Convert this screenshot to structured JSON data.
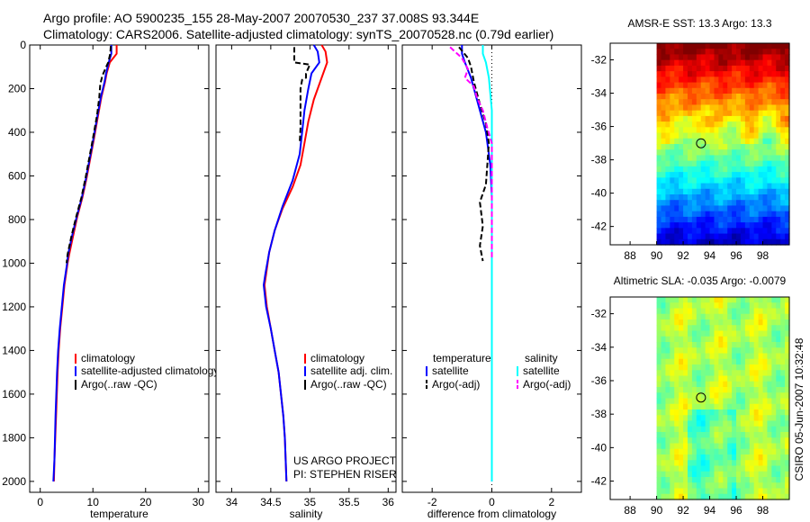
{
  "header": {
    "line1": "Argo profile: AO 5900235_155 28-May-2007 20070530_237 37.008S 93.344E",
    "line2": "Climatology: CARS2006. Satellite-adjusted climatology: synTS_20070528.nc (0.79d earlier)"
  },
  "credit": "CSIRO 05-Jun-2007 10:32:48",
  "project": {
    "line1": "US ARGO PROJECT",
    "line2": "PI: STEPHEN RISER"
  },
  "colors": {
    "climatology": "#ff0000",
    "satellite": "#0000ff",
    "argo": "#000000",
    "sat_sal": "#00ffff",
    "argo_sal": "#ff00ff"
  },
  "chart_data": [
    {
      "id": "temperature",
      "type": "line",
      "xlabel": "temperature",
      "xlim": [
        -2,
        32
      ],
      "ylim": [
        0,
        2050
      ],
      "xticks": [
        "0",
        "10",
        "20",
        "30"
      ],
      "yticks": [
        "0",
        "200",
        "400",
        "600",
        "800",
        "1000",
        "1200",
        "1400",
        "1600",
        "1800",
        "2000"
      ],
      "legend": [
        "climatology",
        "satellite-adjusted climatology",
        "Argo(..raw -QC)"
      ],
      "series": [
        {
          "name": "climatology",
          "color": "red",
          "points": [
            [
              14.5,
              0
            ],
            [
              14.5,
              40
            ],
            [
              13.2,
              80
            ],
            [
              12.6,
              130
            ],
            [
              12.3,
              170
            ],
            [
              11.6,
              240
            ],
            [
              11.0,
              320
            ],
            [
              10.2,
              430
            ],
            [
              9.5,
              520
            ],
            [
              8.8,
              610
            ],
            [
              8.0,
              700
            ],
            [
              7.0,
              790
            ],
            [
              6.2,
              880
            ],
            [
              5.5,
              960
            ],
            [
              5.2,
              1000
            ],
            [
              4.6,
              1100
            ],
            [
              4.2,
              1200
            ],
            [
              3.8,
              1300
            ],
            [
              3.5,
              1400
            ],
            [
              3.3,
              1500
            ],
            [
              3.0,
              1700
            ],
            [
              2.7,
              1900
            ],
            [
              2.6,
              2000
            ]
          ]
        },
        {
          "name": "satellite-adjusted climatology",
          "color": "blue",
          "points": [
            [
              13.5,
              0
            ],
            [
              13.5,
              40
            ],
            [
              13.0,
              80
            ],
            [
              12.5,
              130
            ],
            [
              12.2,
              170
            ],
            [
              11.5,
              240
            ],
            [
              10.9,
              320
            ],
            [
              10.1,
              430
            ],
            [
              9.4,
              520
            ],
            [
              8.7,
              610
            ],
            [
              7.9,
              700
            ],
            [
              6.9,
              790
            ],
            [
              6.0,
              880
            ],
            [
              5.3,
              960
            ],
            [
              5.1,
              1000
            ],
            [
              4.5,
              1100
            ],
            [
              4.1,
              1200
            ],
            [
              3.7,
              1300
            ],
            [
              3.4,
              1400
            ],
            [
              3.2,
              1500
            ],
            [
              2.9,
              1700
            ],
            [
              2.7,
              1900
            ],
            [
              2.5,
              2000
            ]
          ]
        },
        {
          "name": "Argo(..raw -QC)",
          "color": "black",
          "dash": true,
          "points": [
            [
              13.4,
              5
            ],
            [
              13.3,
              40
            ],
            [
              12.9,
              80
            ],
            [
              11.8,
              140
            ],
            [
              11.4,
              180
            ],
            [
              11.2,
              240
            ],
            [
              10.8,
              320
            ],
            [
              10.0,
              430
            ],
            [
              9.3,
              520
            ],
            [
              8.6,
              610
            ],
            [
              7.8,
              700
            ],
            [
              6.8,
              790
            ],
            [
              5.9,
              880
            ],
            [
              5.2,
              960
            ],
            [
              5.0,
              1000
            ]
          ]
        }
      ]
    },
    {
      "id": "salinity",
      "type": "line",
      "xlabel": "salinity",
      "xlim": [
        33.8,
        36.1
      ],
      "ylim": [
        0,
        2050
      ],
      "xticks": [
        "34",
        "34.5",
        "35",
        "35.5",
        "36"
      ],
      "legend": [
        "climatology",
        "satellite adj. clim.",
        "Argo(..raw -QC)"
      ],
      "series": [
        {
          "name": "climatology",
          "color": "red",
          "points": [
            [
              35.15,
              0
            ],
            [
              35.2,
              30
            ],
            [
              35.22,
              80
            ],
            [
              35.15,
              150
            ],
            [
              35.05,
              250
            ],
            [
              34.98,
              350
            ],
            [
              34.93,
              450
            ],
            [
              34.88,
              550
            ],
            [
              34.78,
              650
            ],
            [
              34.65,
              750
            ],
            [
              34.55,
              850
            ],
            [
              34.48,
              950
            ],
            [
              34.44,
              1050
            ],
            [
              34.42,
              1100
            ],
            [
              34.45,
              1200
            ],
            [
              34.5,
              1300
            ],
            [
              34.55,
              1400
            ],
            [
              34.6,
              1500
            ],
            [
              34.63,
              1600
            ],
            [
              34.66,
              1700
            ],
            [
              34.68,
              1800
            ],
            [
              34.69,
              1900
            ],
            [
              34.7,
              2000
            ]
          ]
        },
        {
          "name": "satellite adj. clim.",
          "color": "blue",
          "points": [
            [
              35.05,
              0
            ],
            [
              35.1,
              30
            ],
            [
              35.12,
              80
            ],
            [
              35.02,
              130
            ],
            [
              34.98,
              200
            ],
            [
              34.93,
              300
            ],
            [
              34.9,
              400
            ],
            [
              34.87,
              500
            ],
            [
              34.78,
              620
            ],
            [
              34.65,
              740
            ],
            [
              34.55,
              850
            ],
            [
              34.48,
              950
            ],
            [
              34.43,
              1050
            ],
            [
              34.41,
              1100
            ],
            [
              34.44,
              1200
            ],
            [
              34.5,
              1300
            ],
            [
              34.55,
              1400
            ],
            [
              34.6,
              1500
            ],
            [
              34.63,
              1600
            ],
            [
              34.66,
              1700
            ],
            [
              34.68,
              1800
            ],
            [
              34.69,
              1900
            ],
            [
              34.7,
              2000
            ]
          ]
        },
        {
          "name": "Argo(..raw -QC)",
          "color": "black",
          "dash": true,
          "points": [
            [
              34.8,
              10
            ],
            [
              34.8,
              80
            ],
            [
              35.0,
              90
            ],
            [
              34.95,
              130
            ],
            [
              34.95,
              150
            ],
            [
              34.9,
              160
            ],
            [
              34.88,
              200
            ],
            [
              34.88,
              260
            ],
            [
              34.88,
              380
            ],
            [
              34.87,
              450
            ]
          ]
        }
      ]
    },
    {
      "id": "difference",
      "type": "line",
      "xlabel": "difference from climatology",
      "xlim": [
        -3,
        3
      ],
      "ylim": [
        0,
        2050
      ],
      "xticks": [
        "-2",
        "0",
        "2"
      ],
      "legend_headers": [
        "temperature",
        "salinity"
      ],
      "legend": [
        "satellite",
        "Argo(-adj)",
        "satellite",
        "Argo(-adj)"
      ],
      "series": [
        {
          "name": "temperature satellite",
          "color": "blue",
          "points": [
            [
              -1.0,
              0
            ],
            [
              -1.0,
              40
            ],
            [
              -0.9,
              80
            ],
            [
              -0.7,
              150
            ],
            [
              -0.5,
              250
            ],
            [
              -0.2,
              400
            ],
            [
              -0.05,
              550
            ],
            [
              0,
              700
            ],
            [
              0,
              2000
            ]
          ]
        },
        {
          "name": "temperature Argo(-adj)",
          "color": "black",
          "dash": true,
          "points": [
            [
              -1.1,
              10
            ],
            [
              -0.8,
              60
            ],
            [
              -0.7,
              100
            ],
            [
              -0.6,
              170
            ],
            [
              -0.4,
              270
            ],
            [
              -0.2,
              360
            ],
            [
              -0.1,
              450
            ],
            [
              -0.2,
              640
            ],
            [
              -0.4,
              720
            ],
            [
              -0.3,
              830
            ],
            [
              -0.4,
              920
            ],
            [
              -0.3,
              990
            ]
          ]
        },
        {
          "name": "salinity satellite",
          "color": "cyan",
          "points": [
            [
              -0.3,
              0
            ],
            [
              -0.3,
              40
            ],
            [
              -0.2,
              80
            ],
            [
              -0.1,
              150
            ],
            [
              0,
              300
            ],
            [
              0,
              2000
            ]
          ]
        },
        {
          "name": "salinity Argo(-adj)",
          "color": "magenta",
          "dash": true,
          "points": [
            [
              -1.4,
              10
            ],
            [
              -1.0,
              60
            ],
            [
              -0.8,
              110
            ],
            [
              -0.9,
              150
            ],
            [
              -0.6,
              190
            ],
            [
              -0.5,
              240
            ],
            [
              -0.3,
              300
            ],
            [
              -0.15,
              380
            ],
            [
              0,
              450
            ],
            [
              0,
              980
            ]
          ]
        }
      ]
    },
    {
      "id": "sst-map",
      "type": "heatmap",
      "title": "AMSR-E SST: 13.3 Argo: 13.3",
      "xlim": [
        86.5,
        100
      ],
      "ylim": [
        -43.1,
        -31.0
      ],
      "xticks": [
        "88",
        "90",
        "92",
        "94",
        "96",
        "98"
      ],
      "yticks": [
        "-32",
        "-34",
        "-36",
        "-38",
        "-40",
        "-42"
      ],
      "data_lon_range": [
        90,
        100
      ],
      "marker": {
        "lon": 93.344,
        "lat": -37.008
      }
    },
    {
      "id": "sla-map",
      "type": "heatmap",
      "title": "Altimetric SLA: -0.035 Argo: -0.0079",
      "xlim": [
        86.5,
        100
      ],
      "ylim": [
        -43.1,
        -31.0
      ],
      "xticks": [
        "88",
        "90",
        "92",
        "94",
        "96",
        "98"
      ],
      "yticks": [
        "-32",
        "-34",
        "-36",
        "-38",
        "-40",
        "-42"
      ],
      "data_lon_range": [
        90,
        100
      ],
      "marker": {
        "lon": 93.344,
        "lat": -37.008
      }
    }
  ]
}
